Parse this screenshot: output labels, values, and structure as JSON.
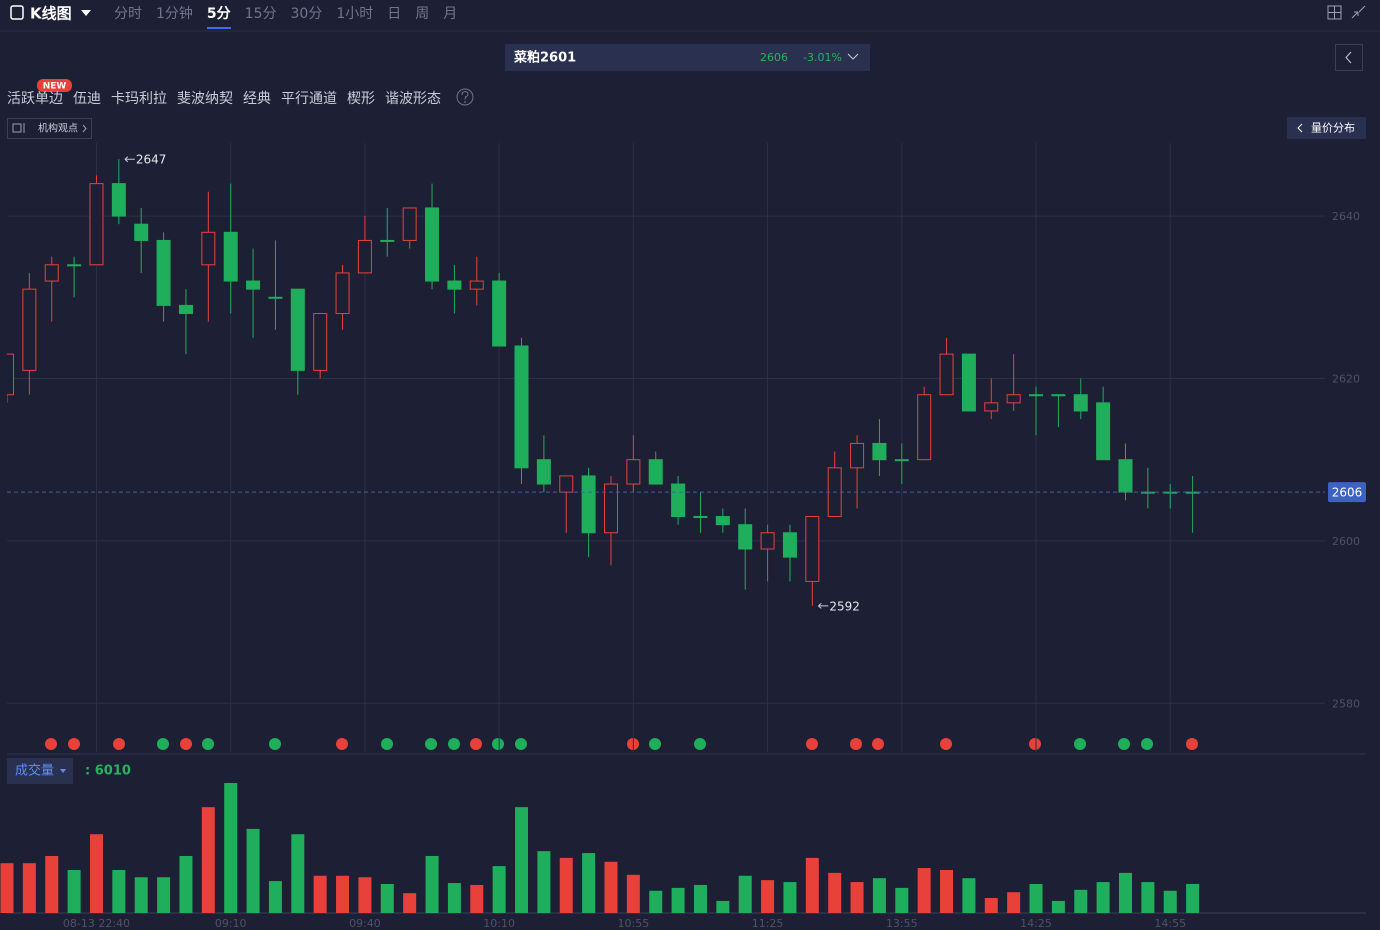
{
  "toolbar": {
    "title": "K线图",
    "periods": [
      "分时",
      "1分钟",
      "5分",
      "15分",
      "30分",
      "1小时",
      "日",
      "周",
      "月"
    ],
    "active_period": "5分"
  },
  "symbol": {
    "name": "菜粕2601",
    "price": "2606",
    "change": "-3.01%"
  },
  "tools": {
    "badge": "NEW",
    "items": [
      "活跃单边",
      "伍迪",
      "卡玛利拉",
      "斐波纳契",
      "经典",
      "平行通道",
      "楔形",
      "谐波形态"
    ],
    "institution": "机构观点",
    "volume_profile": "量价分布",
    "volume_indicator": "成交量"
  },
  "chart_data": {
    "type": "candlestick",
    "categories": [
      null,
      null,
      null,
      null,
      "08-13 22:40",
      null,
      null,
      null,
      null,
      null,
      "09:10",
      null,
      null,
      null,
      null,
      null,
      "09:40",
      null,
      null,
      null,
      null,
      null,
      "10:10",
      null,
      null,
      null,
      null,
      null,
      "10:55",
      null,
      null,
      null,
      null,
      null,
      "11:25",
      null,
      null,
      null,
      null,
      null,
      "13:55",
      null,
      null,
      null,
      null,
      null,
      "14:25",
      null,
      null,
      null,
      null,
      null,
      "14:55",
      null
    ],
    "open": [
      2618,
      2621,
      2632,
      2634,
      2634,
      2644,
      2639,
      2637,
      2629,
      2634,
      2638,
      2632,
      2630,
      2631,
      2621,
      2628,
      2633,
      2637,
      2637,
      2641,
      2632,
      2631,
      2632,
      2624,
      2610,
      2606,
      2608,
      2601,
      2607,
      2610,
      2607,
      2603,
      2603,
      2602,
      2599,
      2601,
      2595,
      2603,
      2609,
      2612,
      2610,
      2610,
      2618,
      2623,
      2616,
      2617,
      2618,
      2618,
      2618,
      2617,
      2610,
      2606,
      2606,
      2606
    ],
    "high": [
      2623,
      2633,
      2635,
      2635,
      2645,
      2647,
      2641,
      2638,
      2631,
      2643,
      2644,
      2636,
      2637,
      2631,
      2628,
      2634,
      2640,
      2641,
      2641,
      2644,
      2634,
      2635,
      2633,
      2625,
      2613,
      2608,
      2609,
      2608,
      2613,
      2611,
      2608,
      2606,
      2604,
      2604,
      2602,
      2602,
      2603,
      2611,
      2613,
      2615,
      2612,
      2619,
      2625,
      2623,
      2620,
      2623,
      2619,
      2618,
      2620,
      2619,
      2612,
      2609,
      2607,
      2608
    ],
    "low": [
      2617,
      2618,
      2627,
      2630,
      2634,
      2639,
      2633,
      2627,
      2623,
      2627,
      2628,
      2625,
      2626,
      2618,
      2620,
      2626,
      2633,
      2635,
      2636,
      2631,
      2628,
      2629,
      2624,
      2607,
      2606,
      2601,
      2598,
      2597,
      2606,
      2607,
      2602,
      2601,
      2601,
      2594,
      2595,
      2595,
      2592,
      2603,
      2604,
      2608,
      2607,
      2610,
      2618,
      2616,
      2615,
      2616,
      2613,
      2614,
      2615,
      2610,
      2605,
      2604,
      2604,
      2601
    ],
    "close": [
      2623,
      2631,
      2634,
      2634,
      2644,
      2640,
      2637,
      2629,
      2628,
      2638,
      2632,
      2631,
      2630,
      2621,
      2628,
      2633,
      2637,
      2637,
      2641,
      2632,
      2631,
      2632,
      2624,
      2609,
      2607,
      2608,
      2601,
      2607,
      2610,
      2607,
      2603,
      2603,
      2602,
      2599,
      2601,
      2598,
      2603,
      2609,
      2612,
      2610,
      2610,
      2618,
      2623,
      2616,
      2617,
      2618,
      2618,
      2618,
      2616,
      2610,
      2606,
      2606,
      2606,
      2606
    ],
    "volume": [
      10300,
      10300,
      11800,
      8900,
      16300,
      8900,
      7400,
      7400,
      11800,
      21900,
      26900,
      17400,
      6600,
      16300,
      7700,
      7700,
      7400,
      6000,
      4100,
      11800,
      6200,
      5800,
      9700,
      21900,
      12800,
      11400,
      12400,
      10600,
      7900,
      4600,
      5200,
      5800,
      2500,
      7700,
      6800,
      6400,
      11400,
      8300,
      6400,
      7200,
      5200,
      9300,
      8900,
      7200,
      3100,
      4300,
      6000,
      2500,
      4800,
      6400,
      8300,
      6400,
      4600,
      6010
    ],
    "up_color": "#e8413a",
    "down_color": "#1fae5b",
    "ylim": [
      2574,
      2649
    ],
    "yticks": [
      2580,
      2600,
      2620,
      2640
    ],
    "volume_ylim": [
      0,
      30000
    ],
    "last_price": 2606,
    "high_label": 2647,
    "low_label": 2592,
    "volume_label": ": 6010",
    "grid": true
  }
}
